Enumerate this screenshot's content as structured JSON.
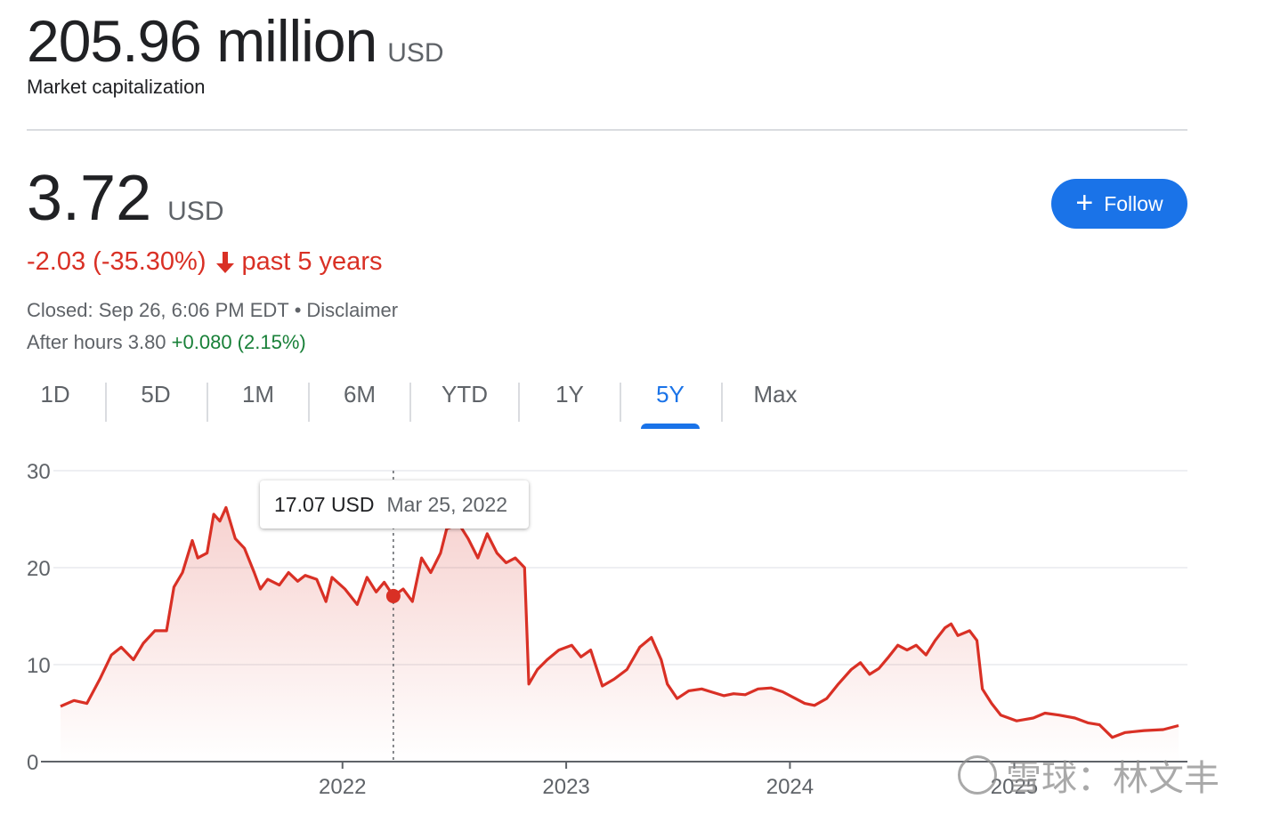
{
  "market_cap": {
    "value": "205.96 million",
    "unit": "USD",
    "label": "Market capitalization"
  },
  "price": {
    "value": "3.72",
    "unit": "USD"
  },
  "follow": {
    "label": "Follow",
    "icon": "plus-icon"
  },
  "change": {
    "text": "-2.03 (-35.30%)",
    "period": "past 5 years",
    "icon": "arrow-down-icon",
    "color": "#d93025"
  },
  "status": {
    "closed": "Closed: Sep 26, 6:06 PM EDT",
    "separator": "•",
    "disclaimer": "Disclaimer"
  },
  "after_hours": {
    "label": "After hours 3.80",
    "change": "+0.080 (2.15%)",
    "color": "#188038"
  },
  "tabs": [
    {
      "label": "1D"
    },
    {
      "label": "5D"
    },
    {
      "label": "1M"
    },
    {
      "label": "6M"
    },
    {
      "label": "YTD"
    },
    {
      "label": "1Y"
    },
    {
      "label": "5Y",
      "active": true
    },
    {
      "label": "Max"
    }
  ],
  "tooltip": {
    "price": "17.07 USD",
    "date": "Mar 25, 2022"
  },
  "accent_color": "#1a73e8",
  "line_color": "#d93025",
  "watermark": {
    "text": "雪球：林文丰"
  },
  "chart_data": {
    "type": "area",
    "title": "",
    "xlabel": "",
    "ylabel": "",
    "x_tick_labels": [
      "2022",
      "2023",
      "2024",
      "2025"
    ],
    "y_tick_labels": [
      "0",
      "10",
      "20",
      "30"
    ],
    "ylim": [
      0,
      30
    ],
    "xlim": [
      "2020-09-28",
      "2025-09-26"
    ],
    "grid": true,
    "highlight": {
      "date": "2022-03-25",
      "value": 17.07
    },
    "series": [
      {
        "values": [
          [
            "2020-09-28",
            5.7
          ],
          [
            "2020-10-20",
            6.3
          ],
          [
            "2020-11-10",
            6.0
          ],
          [
            "2020-12-01",
            8.5
          ],
          [
            "2020-12-20",
            11.0
          ],
          [
            "2021-01-05",
            11.8
          ],
          [
            "2021-01-25",
            10.5
          ],
          [
            "2021-02-10",
            12.2
          ],
          [
            "2021-03-01",
            13.5
          ],
          [
            "2021-03-20",
            13.5
          ],
          [
            "2021-04-01",
            18.0
          ],
          [
            "2021-04-15",
            19.5
          ],
          [
            "2021-05-01",
            22.8
          ],
          [
            "2021-05-10",
            21.0
          ],
          [
            "2021-05-25",
            21.5
          ],
          [
            "2021-06-05",
            25.5
          ],
          [
            "2021-06-15",
            24.8
          ],
          [
            "2021-06-25",
            26.2
          ],
          [
            "2021-07-10",
            23.0
          ],
          [
            "2021-07-25",
            22.0
          ],
          [
            "2021-08-10",
            19.5
          ],
          [
            "2021-08-20",
            17.8
          ],
          [
            "2021-09-01",
            18.8
          ],
          [
            "2021-09-20",
            18.2
          ],
          [
            "2021-10-05",
            19.5
          ],
          [
            "2021-10-20",
            18.6
          ],
          [
            "2021-11-01",
            19.2
          ],
          [
            "2021-11-20",
            18.8
          ],
          [
            "2021-12-05",
            16.5
          ],
          [
            "2021-12-15",
            19.0
          ],
          [
            "2022-01-05",
            17.8
          ],
          [
            "2022-01-25",
            16.2
          ],
          [
            "2022-02-10",
            19.0
          ],
          [
            "2022-02-25",
            17.5
          ],
          [
            "2022-03-10",
            18.5
          ],
          [
            "2022-03-25",
            17.07
          ],
          [
            "2022-04-10",
            17.8
          ],
          [
            "2022-04-25",
            16.5
          ],
          [
            "2022-05-10",
            21.0
          ],
          [
            "2022-05-25",
            19.5
          ],
          [
            "2022-06-10",
            21.5
          ],
          [
            "2022-06-20",
            24.0
          ],
          [
            "2022-07-10",
            24.5
          ],
          [
            "2022-07-25",
            23.0
          ],
          [
            "2022-08-10",
            21.0
          ],
          [
            "2022-08-25",
            23.5
          ],
          [
            "2022-09-10",
            21.5
          ],
          [
            "2022-09-25",
            20.5
          ],
          [
            "2022-10-10",
            21.0
          ],
          [
            "2022-10-25",
            20.0
          ],
          [
            "2022-11-01",
            8.0
          ],
          [
            "2022-11-15",
            9.5
          ],
          [
            "2022-12-01",
            10.5
          ],
          [
            "2022-12-20",
            11.5
          ],
          [
            "2023-01-10",
            12.0
          ],
          [
            "2023-01-25",
            10.8
          ],
          [
            "2023-02-10",
            11.5
          ],
          [
            "2023-03-01",
            7.8
          ],
          [
            "2023-03-20",
            8.5
          ],
          [
            "2023-04-10",
            9.5
          ],
          [
            "2023-05-01",
            11.8
          ],
          [
            "2023-05-20",
            12.8
          ],
          [
            "2023-06-05",
            10.5
          ],
          [
            "2023-06-15",
            8.0
          ],
          [
            "2023-07-01",
            6.5
          ],
          [
            "2023-07-20",
            7.3
          ],
          [
            "2023-08-10",
            7.5
          ],
          [
            "2023-08-25",
            7.2
          ],
          [
            "2023-09-15",
            6.8
          ],
          [
            "2023-10-01",
            7.0
          ],
          [
            "2023-10-20",
            6.9
          ],
          [
            "2023-11-10",
            7.5
          ],
          [
            "2023-12-01",
            7.6
          ],
          [
            "2023-12-20",
            7.2
          ],
          [
            "2024-01-10",
            6.5
          ],
          [
            "2024-01-25",
            6.0
          ],
          [
            "2024-02-10",
            5.8
          ],
          [
            "2024-03-01",
            6.5
          ],
          [
            "2024-03-20",
            8.0
          ],
          [
            "2024-04-10",
            9.5
          ],
          [
            "2024-04-25",
            10.2
          ],
          [
            "2024-05-10",
            9.0
          ],
          [
            "2024-05-25",
            9.6
          ],
          [
            "2024-06-10",
            10.8
          ],
          [
            "2024-06-25",
            12.0
          ],
          [
            "2024-07-10",
            11.5
          ],
          [
            "2024-07-25",
            12.0
          ],
          [
            "2024-08-10",
            11.0
          ],
          [
            "2024-08-25",
            12.5
          ],
          [
            "2024-09-10",
            13.8
          ],
          [
            "2024-09-20",
            14.2
          ],
          [
            "2024-10-01",
            13.0
          ],
          [
            "2024-10-20",
            13.5
          ],
          [
            "2024-11-01",
            12.5
          ],
          [
            "2024-11-10",
            7.5
          ],
          [
            "2024-11-25",
            6.0
          ],
          [
            "2024-12-10",
            4.8
          ],
          [
            "2025-01-05",
            4.2
          ],
          [
            "2025-02-01",
            4.5
          ],
          [
            "2025-02-20",
            5.0
          ],
          [
            "2025-03-15",
            4.8
          ],
          [
            "2025-04-10",
            4.5
          ],
          [
            "2025-05-01",
            4.0
          ],
          [
            "2025-05-20",
            3.8
          ],
          [
            "2025-06-10",
            2.5
          ],
          [
            "2025-07-01",
            3.0
          ],
          [
            "2025-08-01",
            3.2
          ],
          [
            "2025-09-01",
            3.3
          ],
          [
            "2025-09-26",
            3.72
          ]
        ]
      }
    ]
  }
}
